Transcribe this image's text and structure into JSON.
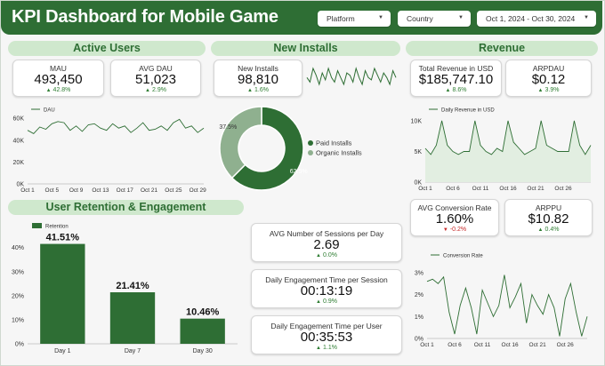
{
  "header": {
    "title": "KPI Dashboard for Mobile Game",
    "filters": {
      "platform": "Platform",
      "country": "Country",
      "date_range": "Oct 1, 2024 - Oct 30, 2024"
    }
  },
  "sections": {
    "active_users": "Active Users",
    "new_installs": "New Installs",
    "revenue": "Revenue",
    "retention": "User Retention & Engagement"
  },
  "kpis": {
    "mau": {
      "label": "MAU",
      "value": "493,450",
      "change": "42.8%",
      "trend": "up"
    },
    "avg_dau": {
      "label": "AVG DAU",
      "value": "51,023",
      "change": "2.9%",
      "trend": "up"
    },
    "new_installs": {
      "label": "New Installs",
      "value": "98,810",
      "change": "1.6%",
      "trend": "up"
    },
    "total_revenue": {
      "label": "Total Revenue in USD",
      "value": "$185,747.10",
      "change": "8.6%",
      "trend": "up"
    },
    "arpdau": {
      "label": "ARPDAU",
      "value": "$0.12",
      "change": "3.9%",
      "trend": "up"
    },
    "avg_conversion": {
      "label": "AVG Conversion Rate",
      "value": "1.60%",
      "change": "-0.2%",
      "trend": "down"
    },
    "arppu": {
      "label": "ARPPU",
      "value": "$10.82",
      "change": "0.4%",
      "trend": "up"
    },
    "avg_sessions": {
      "label": "AVG Number of Sessions per Day",
      "value": "2.69",
      "change": "0.0%",
      "trend": "up"
    },
    "time_per_session": {
      "label": "Daily Engagement Time per Session",
      "value": "00:13:19",
      "change": "0.9%",
      "trend": "up"
    },
    "time_per_user": {
      "label": "Daily Engagement Time per User",
      "value": "00:35:53",
      "change": "1.1%",
      "trend": "up"
    }
  },
  "colors": {
    "dark_green": "#2e6e34",
    "light_green": "#cfe8cd",
    "grey_green": "#8fb08f",
    "up": "#2e7d32",
    "down": "#c62828"
  },
  "icons": {
    "dropdown": "chevron-down-icon",
    "up": "triangle-up-icon",
    "down": "triangle-down-icon"
  },
  "chart_data": [
    {
      "id": "dau",
      "type": "line",
      "series": [
        {
          "name": "DAU",
          "values": [
            49000,
            46000,
            52000,
            50000,
            55000,
            57000,
            56000,
            49000,
            53000,
            48000,
            54000,
            55000,
            51000,
            49000,
            55000,
            51000,
            53000,
            47000,
            51000,
            56000,
            49000,
            50000,
            53000,
            49000,
            56000,
            59000,
            51000,
            53000,
            47000,
            51000
          ]
        }
      ],
      "x_ticks": [
        "Oct 1",
        "Oct 5",
        "Oct 9",
        "Oct 13",
        "Oct 17",
        "Oct 21",
        "Oct 25",
        "Oct 29"
      ],
      "y_ticks": [
        "0K",
        "20K",
        "40K",
        "60K"
      ],
      "ylim": [
        0,
        65000
      ]
    },
    {
      "id": "installs_donut",
      "type": "pie",
      "slices": [
        {
          "name": "Paid Installs",
          "value": 62.5,
          "label": "62.5%"
        },
        {
          "name": "Organic Installs",
          "value": 37.5,
          "label": "37.5%"
        }
      ]
    },
    {
      "id": "installs_spark",
      "type": "line",
      "values": [
        3300,
        3200,
        3500,
        3350,
        3150,
        3400,
        3250,
        3500,
        3300,
        3200,
        3450,
        3300,
        3150,
        3400,
        3350,
        3200,
        3500,
        3300,
        3150,
        3450,
        3300,
        3250,
        3500,
        3350,
        3200,
        3400,
        3300,
        3150,
        3450,
        3300
      ]
    },
    {
      "id": "revenue",
      "type": "area",
      "series": [
        {
          "name": "Daily Revenue in USD",
          "values": [
            5500,
            4500,
            6000,
            10000,
            6000,
            5000,
            4500,
            5000,
            5000,
            10000,
            6000,
            5000,
            4500,
            5500,
            5000,
            10000,
            6500,
            5500,
            4500,
            5000,
            5500,
            10000,
            6000,
            5500,
            5000,
            5000,
            5000,
            10000,
            6000,
            4500,
            6000
          ]
        }
      ],
      "x_ticks": [
        "Oct 1",
        "Oct 6",
        "Oct 11",
        "Oct 16",
        "Oct 21",
        "Oct 26"
      ],
      "y_ticks": [
        "0K",
        "5K",
        "10K"
      ],
      "ylim": [
        0,
        11000
      ]
    },
    {
      "id": "retention",
      "type": "bar",
      "categories": [
        "Day 1",
        "Day 7",
        "Day 30"
      ],
      "series": [
        {
          "name": "Retention",
          "values": [
            41.51,
            21.41,
            10.46
          ]
        }
      ],
      "data_labels": [
        "41.51%",
        "21.41%",
        "10.46%"
      ],
      "y_ticks": [
        "0%",
        "10%",
        "20%",
        "30%",
        "40%"
      ],
      "ylim": [
        0,
        48
      ]
    },
    {
      "id": "conversion",
      "type": "line",
      "series": [
        {
          "name": "Conversion Rate",
          "values": [
            2.6,
            2.7,
            2.5,
            2.8,
            1.2,
            0.2,
            1.5,
            2.3,
            1.4,
            0.2,
            2.2,
            1.6,
            1.0,
            1.5,
            2.9,
            1.4,
            1.9,
            2.5,
            0.7,
            2.0,
            1.5,
            1.1,
            2.0,
            1.4,
            0.1,
            1.8,
            2.5,
            1.2,
            0.1,
            1.0
          ]
        }
      ],
      "x_ticks": [
        "Oct 1",
        "Oct 6",
        "Oct 11",
        "Oct 16",
        "Oct 21",
        "Oct 26"
      ],
      "y_ticks": [
        "0%",
        "1%",
        "2%",
        "3%"
      ],
      "ylim": [
        0,
        3.4
      ]
    }
  ]
}
